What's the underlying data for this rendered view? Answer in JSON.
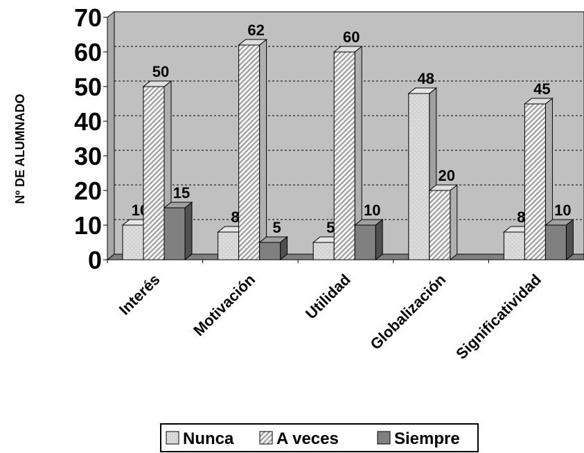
{
  "chart_data": {
    "type": "bar3d",
    "y_label": "Nº DE ALUMNADO",
    "categories": [
      "Interés",
      "Motivación",
      "Utilidad",
      "Globalización",
      "Significatividad"
    ],
    "series": [
      {
        "name": "Nunca",
        "color": "#d4d4d4",
        "values": [
          10,
          8,
          5,
          48,
          8
        ]
      },
      {
        "name": "A veces",
        "color": "#f2f2f2",
        "values": [
          50,
          62,
          60,
          20,
          45
        ]
      },
      {
        "name": "Siempre",
        "color": "#808080",
        "values": [
          15,
          5,
          10,
          null,
          10
        ]
      }
    ],
    "ylim": [
      0,
      70
    ],
    "yticks": [
      0,
      10,
      20,
      30,
      40,
      50,
      60,
      70
    ],
    "grid": true,
    "legend": "bottom"
  }
}
